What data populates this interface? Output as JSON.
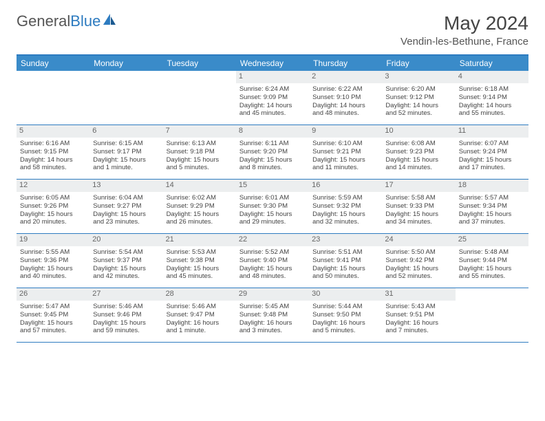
{
  "brand": {
    "part1": "General",
    "part2": "Blue"
  },
  "title": {
    "month": "May 2024",
    "location": "Vendin-les-Bethune, France"
  },
  "colors": {
    "accent": "#3a8bc9",
    "rule": "#2d7bc0",
    "numbg": "#eceeef"
  },
  "dayNames": [
    "Sunday",
    "Monday",
    "Tuesday",
    "Wednesday",
    "Thursday",
    "Friday",
    "Saturday"
  ],
  "weeks": [
    [
      {
        "n": "",
        "sr": "",
        "ss": "",
        "dl1": "",
        "dl2": "",
        "empty": true
      },
      {
        "n": "",
        "sr": "",
        "ss": "",
        "dl1": "",
        "dl2": "",
        "empty": true
      },
      {
        "n": "",
        "sr": "",
        "ss": "",
        "dl1": "",
        "dl2": "",
        "empty": true
      },
      {
        "n": "1",
        "sr": "Sunrise: 6:24 AM",
        "ss": "Sunset: 9:09 PM",
        "dl1": "Daylight: 14 hours",
        "dl2": "and 45 minutes."
      },
      {
        "n": "2",
        "sr": "Sunrise: 6:22 AM",
        "ss": "Sunset: 9:10 PM",
        "dl1": "Daylight: 14 hours",
        "dl2": "and 48 minutes."
      },
      {
        "n": "3",
        "sr": "Sunrise: 6:20 AM",
        "ss": "Sunset: 9:12 PM",
        "dl1": "Daylight: 14 hours",
        "dl2": "and 52 minutes."
      },
      {
        "n": "4",
        "sr": "Sunrise: 6:18 AM",
        "ss": "Sunset: 9:14 PM",
        "dl1": "Daylight: 14 hours",
        "dl2": "and 55 minutes."
      }
    ],
    [
      {
        "n": "5",
        "sr": "Sunrise: 6:16 AM",
        "ss": "Sunset: 9:15 PM",
        "dl1": "Daylight: 14 hours",
        "dl2": "and 58 minutes."
      },
      {
        "n": "6",
        "sr": "Sunrise: 6:15 AM",
        "ss": "Sunset: 9:17 PM",
        "dl1": "Daylight: 15 hours",
        "dl2": "and 1 minute."
      },
      {
        "n": "7",
        "sr": "Sunrise: 6:13 AM",
        "ss": "Sunset: 9:18 PM",
        "dl1": "Daylight: 15 hours",
        "dl2": "and 5 minutes."
      },
      {
        "n": "8",
        "sr": "Sunrise: 6:11 AM",
        "ss": "Sunset: 9:20 PM",
        "dl1": "Daylight: 15 hours",
        "dl2": "and 8 minutes."
      },
      {
        "n": "9",
        "sr": "Sunrise: 6:10 AM",
        "ss": "Sunset: 9:21 PM",
        "dl1": "Daylight: 15 hours",
        "dl2": "and 11 minutes."
      },
      {
        "n": "10",
        "sr": "Sunrise: 6:08 AM",
        "ss": "Sunset: 9:23 PM",
        "dl1": "Daylight: 15 hours",
        "dl2": "and 14 minutes."
      },
      {
        "n": "11",
        "sr": "Sunrise: 6:07 AM",
        "ss": "Sunset: 9:24 PM",
        "dl1": "Daylight: 15 hours",
        "dl2": "and 17 minutes."
      }
    ],
    [
      {
        "n": "12",
        "sr": "Sunrise: 6:05 AM",
        "ss": "Sunset: 9:26 PM",
        "dl1": "Daylight: 15 hours",
        "dl2": "and 20 minutes."
      },
      {
        "n": "13",
        "sr": "Sunrise: 6:04 AM",
        "ss": "Sunset: 9:27 PM",
        "dl1": "Daylight: 15 hours",
        "dl2": "and 23 minutes."
      },
      {
        "n": "14",
        "sr": "Sunrise: 6:02 AM",
        "ss": "Sunset: 9:29 PM",
        "dl1": "Daylight: 15 hours",
        "dl2": "and 26 minutes."
      },
      {
        "n": "15",
        "sr": "Sunrise: 6:01 AM",
        "ss": "Sunset: 9:30 PM",
        "dl1": "Daylight: 15 hours",
        "dl2": "and 29 minutes."
      },
      {
        "n": "16",
        "sr": "Sunrise: 5:59 AM",
        "ss": "Sunset: 9:32 PM",
        "dl1": "Daylight: 15 hours",
        "dl2": "and 32 minutes."
      },
      {
        "n": "17",
        "sr": "Sunrise: 5:58 AM",
        "ss": "Sunset: 9:33 PM",
        "dl1": "Daylight: 15 hours",
        "dl2": "and 34 minutes."
      },
      {
        "n": "18",
        "sr": "Sunrise: 5:57 AM",
        "ss": "Sunset: 9:34 PM",
        "dl1": "Daylight: 15 hours",
        "dl2": "and 37 minutes."
      }
    ],
    [
      {
        "n": "19",
        "sr": "Sunrise: 5:55 AM",
        "ss": "Sunset: 9:36 PM",
        "dl1": "Daylight: 15 hours",
        "dl2": "and 40 minutes."
      },
      {
        "n": "20",
        "sr": "Sunrise: 5:54 AM",
        "ss": "Sunset: 9:37 PM",
        "dl1": "Daylight: 15 hours",
        "dl2": "and 42 minutes."
      },
      {
        "n": "21",
        "sr": "Sunrise: 5:53 AM",
        "ss": "Sunset: 9:38 PM",
        "dl1": "Daylight: 15 hours",
        "dl2": "and 45 minutes."
      },
      {
        "n": "22",
        "sr": "Sunrise: 5:52 AM",
        "ss": "Sunset: 9:40 PM",
        "dl1": "Daylight: 15 hours",
        "dl2": "and 48 minutes."
      },
      {
        "n": "23",
        "sr": "Sunrise: 5:51 AM",
        "ss": "Sunset: 9:41 PM",
        "dl1": "Daylight: 15 hours",
        "dl2": "and 50 minutes."
      },
      {
        "n": "24",
        "sr": "Sunrise: 5:50 AM",
        "ss": "Sunset: 9:42 PM",
        "dl1": "Daylight: 15 hours",
        "dl2": "and 52 minutes."
      },
      {
        "n": "25",
        "sr": "Sunrise: 5:48 AM",
        "ss": "Sunset: 9:44 PM",
        "dl1": "Daylight: 15 hours",
        "dl2": "and 55 minutes."
      }
    ],
    [
      {
        "n": "26",
        "sr": "Sunrise: 5:47 AM",
        "ss": "Sunset: 9:45 PM",
        "dl1": "Daylight: 15 hours",
        "dl2": "and 57 minutes."
      },
      {
        "n": "27",
        "sr": "Sunrise: 5:46 AM",
        "ss": "Sunset: 9:46 PM",
        "dl1": "Daylight: 15 hours",
        "dl2": "and 59 minutes."
      },
      {
        "n": "28",
        "sr": "Sunrise: 5:46 AM",
        "ss": "Sunset: 9:47 PM",
        "dl1": "Daylight: 16 hours",
        "dl2": "and 1 minute."
      },
      {
        "n": "29",
        "sr": "Sunrise: 5:45 AM",
        "ss": "Sunset: 9:48 PM",
        "dl1": "Daylight: 16 hours",
        "dl2": "and 3 minutes."
      },
      {
        "n": "30",
        "sr": "Sunrise: 5:44 AM",
        "ss": "Sunset: 9:50 PM",
        "dl1": "Daylight: 16 hours",
        "dl2": "and 5 minutes."
      },
      {
        "n": "31",
        "sr": "Sunrise: 5:43 AM",
        "ss": "Sunset: 9:51 PM",
        "dl1": "Daylight: 16 hours",
        "dl2": "and 7 minutes."
      },
      {
        "n": "",
        "sr": "",
        "ss": "",
        "dl1": "",
        "dl2": "",
        "empty": true
      }
    ]
  ]
}
